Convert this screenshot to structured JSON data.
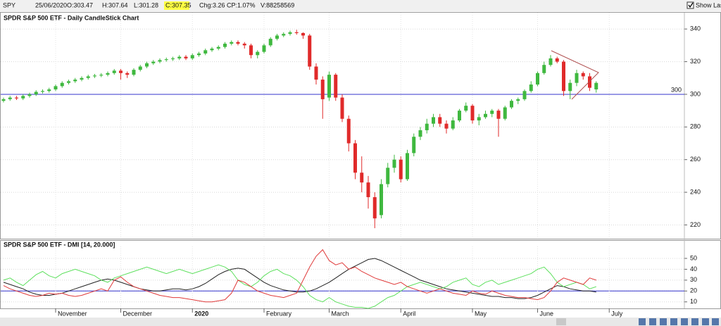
{
  "toolbar": {
    "symbol": "SPY",
    "date": "25/06/2020",
    "open": "O:303.47",
    "high": "H:307.64",
    "low": "L:301.28",
    "close": "C:307.35",
    "change": "Chg:3.26",
    "change_percent": "CP:1.07%",
    "volume": "V:88258569",
    "show_last": "Show Last"
  },
  "chart_data": [
    {
      "type": "candlestick",
      "title": "SPDR S&P 500 ETF - Daily CandleStick Chart",
      "categories": [
        null,
        null,
        null,
        null,
        null,
        null,
        null,
        null,
        "November",
        null,
        null,
        null,
        null,
        null,
        null,
        null,
        null,
        null,
        "December",
        null,
        null,
        null,
        null,
        null,
        null,
        null,
        null,
        null,
        null,
        "2020",
        null,
        null,
        null,
        null,
        null,
        null,
        null,
        null,
        null,
        null,
        "February",
        null,
        null,
        null,
        null,
        null,
        null,
        null,
        null,
        null,
        "March",
        null,
        null,
        null,
        null,
        null,
        null,
        null,
        null,
        null,
        null,
        "April",
        null,
        null,
        null,
        null,
        null,
        null,
        null,
        null,
        null,
        null,
        "May",
        null,
        null,
        null,
        null,
        null,
        null,
        null,
        null,
        null,
        "June",
        null,
        null,
        null,
        null,
        null,
        null,
        null,
        null,
        null,
        null,
        "July"
      ],
      "open": [
        296,
        297,
        298,
        297.5,
        299,
        300,
        301.5,
        302,
        303,
        305,
        307,
        308,
        309,
        310,
        311,
        311.5,
        312,
        313,
        314.5,
        313,
        312,
        315,
        317,
        319,
        320,
        321,
        321.5,
        322,
        323,
        322,
        324,
        325,
        327,
        328,
        329,
        331,
        332,
        331,
        330,
        324,
        326,
        330,
        334,
        336,
        337,
        338,
        337.5,
        336,
        317,
        309,
        298,
        312,
        298,
        285,
        270,
        252,
        246,
        237,
        226,
        245,
        255,
        260,
        248,
        264,
        274,
        278,
        282,
        286,
        282,
        279,
        284,
        290,
        293,
        284,
        286,
        288,
        290,
        285,
        292,
        296,
        297,
        302,
        306,
        313,
        318,
        322,
        320,
        302,
        307,
        313,
        311,
        303,
        null,
        null
      ],
      "high": [
        298,
        299,
        299,
        300,
        301,
        302.5,
        303,
        304,
        306,
        308,
        309,
        310,
        311,
        312,
        312.5,
        313,
        314,
        315.5,
        315.5,
        314,
        316,
        318,
        320,
        321,
        322,
        322.5,
        323,
        324,
        324,
        325,
        326,
        328,
        329,
        330,
        332,
        333,
        333,
        332,
        331,
        327,
        331,
        335,
        337,
        338,
        339,
        339.5,
        338,
        337,
        319,
        311,
        314,
        313,
        300,
        287,
        272,
        262,
        250,
        240,
        248,
        258,
        263,
        262,
        266,
        276,
        280,
        285,
        288,
        288,
        284,
        286,
        291,
        295,
        294,
        288,
        290,
        291,
        291,
        293,
        297,
        298,
        303,
        308,
        314,
        320,
        324,
        323,
        321,
        309,
        315,
        314,
        313,
        308,
        null,
        null
      ],
      "low": [
        295,
        296,
        296.5,
        296.5,
        298,
        299,
        300.5,
        301,
        302,
        304,
        306,
        307,
        308,
        309,
        310,
        310.5,
        311,
        312,
        309,
        310,
        311,
        314,
        316,
        318,
        319,
        320,
        320.5,
        321,
        321,
        321,
        323,
        324,
        326,
        327,
        328,
        330,
        330,
        328,
        322,
        322,
        325,
        329,
        333,
        335,
        336,
        336.5,
        334,
        315,
        306,
        285,
        296,
        296,
        283,
        265,
        248,
        240,
        230,
        218,
        224,
        243,
        252,
        246,
        247,
        262,
        272,
        276,
        280,
        280,
        276,
        278,
        283,
        289,
        282,
        281,
        285,
        286,
        274,
        284,
        291,
        294,
        296,
        301,
        305,
        312,
        317,
        319,
        299,
        297,
        305,
        309,
        302,
        301,
        null,
        null
      ],
      "close": [
        297,
        298,
        297.5,
        299,
        300,
        301.5,
        302,
        303,
        305,
        307,
        308,
        309,
        310,
        311,
        311.5,
        312,
        313,
        314.5,
        313,
        312,
        315,
        317,
        319,
        320,
        321,
        321.5,
        322,
        323,
        322,
        324,
        325,
        327,
        328,
        329,
        331,
        332,
        331,
        330,
        324,
        326,
        330,
        334,
        336,
        337,
        338,
        337.5,
        336,
        317,
        309,
        297,
        312,
        298,
        285,
        270,
        252,
        246,
        237,
        224,
        245,
        255,
        260,
        248,
        264,
        274,
        278,
        282,
        286,
        282,
        279,
        284,
        290,
        293,
        284,
        286,
        288,
        290,
        285,
        292,
        296,
        297,
        302,
        306,
        313,
        318,
        322,
        320,
        302,
        307,
        313,
        311,
        304,
        307,
        null,
        null
      ],
      "up_color": "#3fb83f",
      "down_color": "#e02a2a",
      "ylim": [
        212,
        350
      ],
      "yticks": [
        220,
        240,
        260,
        280,
        300,
        320,
        340
      ],
      "grid": true,
      "reference_line": 300,
      "reference_color": "#3333cc"
    },
    {
      "type": "line",
      "title": "SPDR S&P 500 ETF - DMI [14, 20.000]",
      "series": [
        {
          "color": "#222222",
          "values": [
            28,
            26,
            24,
            22,
            19,
            17,
            16,
            16,
            17,
            18,
            20,
            22,
            24,
            26,
            28,
            30,
            31,
            30,
            28,
            26,
            24,
            22,
            21,
            20,
            20,
            21,
            22,
            22,
            21,
            22,
            24,
            27,
            31,
            35,
            38,
            40,
            41,
            40,
            36,
            32,
            28,
            25,
            23,
            21,
            20,
            19,
            19,
            20,
            22,
            25,
            28,
            32,
            36,
            40,
            43,
            46,
            49,
            50,
            48,
            45,
            42,
            39,
            36,
            33,
            30,
            28,
            26,
            24,
            22,
            21,
            20,
            19,
            18,
            17,
            16,
            15,
            15,
            14,
            14,
            13,
            13,
            14,
            16,
            19,
            22,
            25,
            24,
            22,
            21,
            20,
            20,
            19,
            null,
            null
          ]
        },
        {
          "color": "#5ee05e",
          "values": [
            30,
            32,
            28,
            25,
            30,
            35,
            38,
            34,
            32,
            36,
            38,
            40,
            38,
            36,
            34,
            30,
            28,
            32,
            34,
            36,
            38,
            40,
            42,
            40,
            38,
            36,
            38,
            40,
            38,
            36,
            38,
            40,
            42,
            44,
            42,
            38,
            30,
            26,
            24,
            28,
            34,
            38,
            40,
            36,
            34,
            30,
            24,
            16,
            12,
            10,
            14,
            10,
            8,
            6,
            5,
            5,
            4,
            6,
            10,
            14,
            16,
            20,
            24,
            26,
            28,
            26,
            24,
            22,
            24,
            28,
            30,
            32,
            26,
            24,
            28,
            30,
            26,
            28,
            30,
            32,
            34,
            36,
            40,
            42,
            36,
            28,
            24,
            26,
            28,
            26,
            22,
            24,
            null,
            null
          ]
        },
        {
          "color": "#e03a3a",
          "values": [
            25,
            22,
            20,
            18,
            16,
            15,
            16,
            18,
            17,
            18,
            16,
            15,
            16,
            18,
            20,
            22,
            20,
            30,
            33,
            28,
            24,
            22,
            20,
            18,
            16,
            15,
            14,
            14,
            13,
            12,
            11,
            10,
            10,
            11,
            12,
            18,
            30,
            28,
            24,
            20,
            18,
            16,
            15,
            14,
            16,
            18,
            30,
            42,
            52,
            58,
            48,
            44,
            46,
            40,
            42,
            38,
            35,
            32,
            30,
            28,
            26,
            28,
            24,
            22,
            20,
            18,
            20,
            22,
            20,
            18,
            17,
            16,
            20,
            18,
            17,
            20,
            18,
            16,
            15,
            14,
            14,
            13,
            12,
            14,
            20,
            28,
            32,
            30,
            28,
            26,
            32,
            30,
            null,
            null
          ]
        }
      ],
      "ylim": [
        4,
        61
      ],
      "yticks": [
        10,
        20,
        30,
        40,
        50
      ],
      "grid": true,
      "reference_line": 20,
      "reference_color": "#3333cc"
    }
  ]
}
